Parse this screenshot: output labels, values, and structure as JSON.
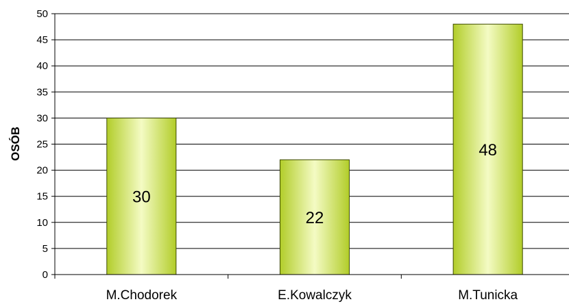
{
  "chart_data": {
    "type": "bar",
    "categories": [
      "M.Chodorek",
      "E.Kowalczyk",
      "M.Tunicka"
    ],
    "values": [
      30,
      22,
      48
    ],
    "data_labels": [
      "30",
      "22",
      "48"
    ],
    "title": "",
    "xlabel": "",
    "ylabel": "OSÓB",
    "ylim": [
      0,
      50
    ],
    "yticks": [
      0,
      5,
      10,
      15,
      20,
      25,
      30,
      35,
      40,
      45,
      50
    ],
    "grid": true,
    "legend": "none",
    "bar_colors": {
      "edge": "#b2cd2a",
      "center": "#f4fbc4",
      "outline": "#3d4a00"
    }
  }
}
